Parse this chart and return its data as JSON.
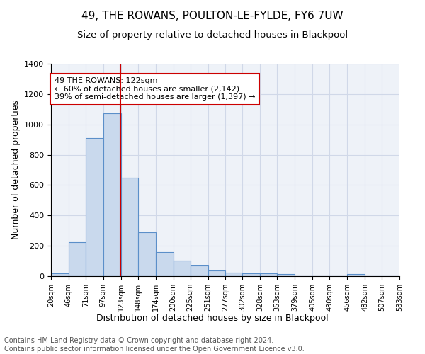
{
  "title": "49, THE ROWANS, POULTON-LE-FYLDE, FY6 7UW",
  "subtitle": "Size of property relative to detached houses in Blackpool",
  "xlabel": "Distribution of detached houses by size in Blackpool",
  "ylabel": "Number of detached properties",
  "footer_line1": "Contains HM Land Registry data © Crown copyright and database right 2024.",
  "footer_line2": "Contains public sector information licensed under the Open Government Licence v3.0.",
  "bins": [
    20,
    46,
    71,
    97,
    123,
    148,
    174,
    200,
    225,
    251,
    277,
    302,
    328,
    353,
    379,
    405,
    430,
    456,
    482,
    507,
    533
  ],
  "bin_labels": [
    "20sqm",
    "46sqm",
    "71sqm",
    "97sqm",
    "123sqm",
    "148sqm",
    "174sqm",
    "200sqm",
    "225sqm",
    "251sqm",
    "277sqm",
    "302sqm",
    "328sqm",
    "353sqm",
    "379sqm",
    "405sqm",
    "430sqm",
    "456sqm",
    "482sqm",
    "507sqm",
    "533sqm"
  ],
  "counts": [
    20,
    225,
    910,
    1075,
    650,
    290,
    160,
    105,
    70,
    38,
    25,
    20,
    17,
    13,
    0,
    0,
    0,
    13,
    0,
    0
  ],
  "bar_color": "#c9d9ed",
  "bar_edge_color": "#5b8fc9",
  "vline_x": 122,
  "vline_color": "#cc0000",
  "annotation_text": "49 THE ROWANS: 122sqm\n← 60% of detached houses are smaller (2,142)\n39% of semi-detached houses are larger (1,397) →",
  "annotation_box_color": "white",
  "annotation_box_edge_color": "#cc0000",
  "ylim": [
    0,
    1400
  ],
  "yticks": [
    0,
    200,
    400,
    600,
    800,
    1000,
    1200,
    1400
  ],
  "title_fontsize": 11,
  "subtitle_fontsize": 9.5,
  "annotation_fontsize": 8,
  "ylabel_fontsize": 9,
  "xlabel_fontsize": 9,
  "footer_fontsize": 7,
  "grid_color": "#d0d8e8",
  "background_color": "#eef2f8"
}
